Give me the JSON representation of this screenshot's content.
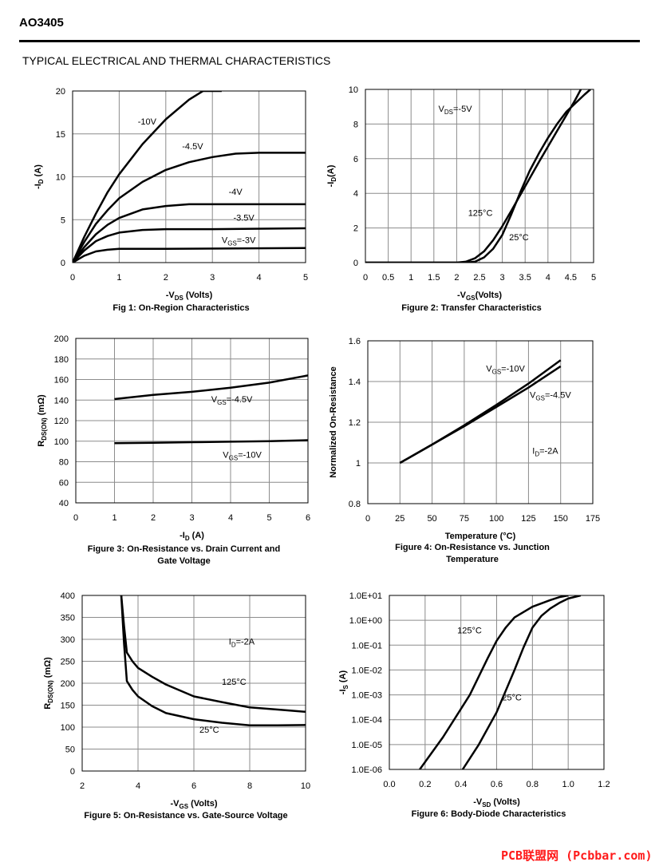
{
  "header": {
    "part_number": "AO3405",
    "section_title": "TYPICAL ELECTRICAL AND THERMAL CHARACTERISTICS"
  },
  "footer": {
    "watermark": "PCB联盟网 (Pcbbar.com)"
  },
  "chart_data": [
    {
      "type": "line",
      "title": "Fig 1: On-Region Characteristics",
      "title_lines": [
        "Fig 1: On-Region Characteristics"
      ],
      "xlabel": {
        "main": "-V",
        "sub": "DS",
        "rest": " (Volts)"
      },
      "ylabel": {
        "main": "-I",
        "sub": "D",
        "rest": " (A)"
      },
      "xlim": [
        0,
        5
      ],
      "ylim": [
        0,
        20
      ],
      "grid": true,
      "log_y": false,
      "xticks": [
        "0",
        "1",
        "2",
        "3",
        "4",
        "5"
      ],
      "yticks": [
        "0",
        "5",
        "10",
        "15",
        "20"
      ],
      "series": [
        {
          "name": "-10V",
          "x": [
            0,
            0.25,
            0.5,
            0.75,
            1,
            1.5,
            2,
            2.5,
            2.8,
            3.2
          ],
          "y": [
            0,
            3.0,
            5.7,
            8.2,
            10.3,
            13.8,
            16.7,
            19.0,
            20,
            20
          ]
        },
        {
          "name": "-4.5V",
          "x": [
            0,
            0.25,
            0.5,
            0.75,
            1,
            1.5,
            2,
            2.5,
            3,
            3.5,
            4,
            5
          ],
          "y": [
            0,
            2.4,
            4.5,
            6.1,
            7.5,
            9.4,
            10.8,
            11.7,
            12.3,
            12.7,
            12.8,
            12.8
          ]
        },
        {
          "name": "-4V",
          "x": [
            0,
            0.25,
            0.5,
            0.75,
            1,
            1.5,
            2,
            2.5,
            3,
            5
          ],
          "y": [
            0,
            1.8,
            3.3,
            4.4,
            5.2,
            6.2,
            6.6,
            6.8,
            6.8,
            6.8
          ]
        },
        {
          "name": "-3.5V",
          "x": [
            0,
            0.25,
            0.5,
            0.75,
            1,
            1.5,
            2,
            3,
            5
          ],
          "y": [
            0,
            1.4,
            2.5,
            3.1,
            3.5,
            3.8,
            3.9,
            3.9,
            4.0
          ]
        },
        {
          "name": "V_GS=-3V",
          "x": [
            0,
            0.25,
            0.5,
            0.75,
            1,
            1.5,
            2,
            5
          ],
          "y": [
            0,
            0.8,
            1.3,
            1.5,
            1.6,
            1.6,
            1.6,
            1.7
          ]
        }
      ],
      "annotations": [
        {
          "main": "-10V",
          "x": 1.4,
          "y": 16.1
        },
        {
          "main": "-4.5V",
          "x": 2.35,
          "y": 13.2
        },
        {
          "main": "-4V",
          "x": 3.35,
          "y": 7.9
        },
        {
          "main": "-3.5V",
          "x": 3.45,
          "y": 4.9
        },
        {
          "main": "V",
          "sub": "GS",
          "rest": "=-3V",
          "x": 3.2,
          "y": 2.3
        }
      ]
    },
    {
      "type": "line",
      "title": "Figure 2: Transfer Characteristics",
      "title_lines": [
        "Figure 2: Transfer Characteristics"
      ],
      "xlabel": {
        "main": "-V",
        "sub": "GS",
        "rest": "(Volts)"
      },
      "ylabel": {
        "main": "-I",
        "sub": "D",
        "rest": "(A)"
      },
      "xlim": [
        0,
        5
      ],
      "ylim": [
        0,
        10
      ],
      "grid": true,
      "log_y": false,
      "xticks": [
        "0",
        "0.5",
        "1",
        "1.5",
        "2",
        "2.5",
        "3",
        "3.5",
        "4",
        "4.5",
        "5"
      ],
      "yticks": [
        "0",
        "2",
        "4",
        "6",
        "8",
        "10"
      ],
      "series": [
        {
          "name": "125°C",
          "x": [
            0,
            2.0,
            2.2,
            2.4,
            2.6,
            2.8,
            3.0,
            3.2,
            3.5,
            3.8,
            4.0,
            4.2,
            4.4,
            4.6,
            4.72
          ],
          "y": [
            0,
            0,
            0.05,
            0.25,
            0.65,
            1.3,
            2.1,
            3.0,
            4.4,
            5.8,
            6.7,
            7.6,
            8.5,
            9.4,
            10
          ]
        },
        {
          "name": "25°C",
          "x": [
            0,
            2.2,
            2.4,
            2.6,
            2.8,
            3.0,
            3.2,
            3.4,
            3.6,
            3.8,
            4.0,
            4.2,
            4.4,
            4.6,
            4.8,
            4.93
          ],
          "y": [
            0,
            0,
            0.05,
            0.3,
            0.8,
            1.6,
            2.8,
            4.1,
            5.3,
            6.3,
            7.2,
            8.0,
            8.7,
            9.2,
            9.7,
            10
          ]
        }
      ],
      "annotations": [
        {
          "main": "V",
          "sub": "DS",
          "rest": "=-5V",
          "x": 1.6,
          "y": 8.7
        },
        {
          "main": "125°C",
          "x": 2.25,
          "y": 2.7
        },
        {
          "main": "25°C",
          "x": 3.15,
          "y": 1.3
        }
      ]
    },
    {
      "type": "line",
      "title": "Figure 3: On-Resistance vs. Drain Current and Gate Voltage",
      "title_lines": [
        "Figure 3: On-Resistance vs. Drain Current and",
        "Gate Voltage"
      ],
      "xlabel": {
        "main": "-I",
        "sub": "D",
        "rest": " (A)"
      },
      "ylabel": {
        "main": "R",
        "sub": "DS(ON)",
        "rest": " (mΩ)"
      },
      "xlim": [
        0,
        6
      ],
      "ylim": [
        40,
        200
      ],
      "grid": true,
      "log_y": false,
      "xticks": [
        "0",
        "1",
        "2",
        "3",
        "4",
        "5",
        "6"
      ],
      "yticks": [
        "40",
        "60",
        "80",
        "100",
        "120",
        "140",
        "160",
        "180",
        "200"
      ],
      "series": [
        {
          "name": "V_GS=-4.5V",
          "x": [
            1,
            2,
            3,
            4,
            5,
            6
          ],
          "y": [
            141,
            145,
            148,
            152,
            157,
            164
          ]
        },
        {
          "name": "V_GS=-10V",
          "x": [
            1,
            2,
            3,
            4,
            5,
            6
          ],
          "y": [
            98,
            98.5,
            99,
            99.5,
            100,
            101
          ]
        }
      ],
      "annotations": [
        {
          "main": "V",
          "sub": "GS",
          "rest": "=-4.5V",
          "x": 3.5,
          "y": 138
        },
        {
          "main": "V",
          "sub": "GS",
          "rest": "=-10V",
          "x": 3.8,
          "y": 84
        }
      ]
    },
    {
      "type": "line",
      "title": "Figure 4: On-Resistance vs. Junction Temperature",
      "title_lines": [
        "Figure 4: On-Resistance vs. Junction",
        "Temperature"
      ],
      "xlabel": {
        "main": "Temperature (°C)"
      },
      "ylabel": {
        "main": "Normalized On-Resistance"
      },
      "xlim": [
        0,
        175
      ],
      "ylim": [
        0.8,
        1.6
      ],
      "grid": true,
      "log_y": false,
      "xticks": [
        "0",
        "25",
        "50",
        "75",
        "100",
        "125",
        "150",
        "175"
      ],
      "yticks": [
        "0.8",
        "1",
        "1.2",
        "1.4",
        "1.6"
      ],
      "series": [
        {
          "name": "V_GS=-10V",
          "x": [
            25,
            50,
            75,
            100,
            125,
            150
          ],
          "y": [
            1.0,
            1.09,
            1.185,
            1.285,
            1.39,
            1.505
          ]
        },
        {
          "name": "V_GS=-4.5V",
          "x": [
            25,
            50,
            75,
            100,
            125,
            150
          ],
          "y": [
            1.0,
            1.09,
            1.18,
            1.275,
            1.37,
            1.475
          ]
        }
      ],
      "annotations": [
        {
          "main": "V",
          "sub": "GS",
          "rest": "=-10V",
          "x": 92,
          "y": 1.45
        },
        {
          "main": "V",
          "sub": "GS",
          "rest": "=-4.5V",
          "x": 126,
          "y": 1.32
        },
        {
          "main": "I",
          "sub": "D",
          "rest": "=-2A",
          "x": 128,
          "y": 1.045
        }
      ]
    },
    {
      "type": "line",
      "title": "Figure 5: On-Resistance vs. Gate-Source Voltage",
      "title_lines": [
        "Figure 5: On-Resistance vs. Gate-Source Voltage"
      ],
      "xlabel": {
        "main": "-V",
        "sub": "GS",
        "rest": " (Volts)"
      },
      "ylabel": {
        "main": "R",
        "sub": "DS(ON)",
        "rest": " (mΩ)"
      },
      "xlim": [
        2,
        10
      ],
      "ylim": [
        0,
        400
      ],
      "grid": true,
      "log_y": false,
      "xticks": [
        "2",
        "4",
        "6",
        "8",
        "10"
      ],
      "yticks": [
        "0",
        "50",
        "100",
        "150",
        "200",
        "250",
        "300",
        "350",
        "400"
      ],
      "series": [
        {
          "name": "125°C",
          "x": [
            3.4,
            3.5,
            3.6,
            3.8,
            4,
            4.5,
            5,
            6,
            7,
            8,
            9,
            10
          ],
          "y": [
            400,
            330,
            270,
            250,
            235,
            215,
            197,
            170,
            157,
            145,
            140,
            135
          ]
        },
        {
          "name": "25°C",
          "x": [
            3.4,
            3.5,
            3.6,
            3.8,
            4,
            4.5,
            5,
            6,
            7,
            8,
            9,
            10
          ],
          "y": [
            400,
            290,
            205,
            185,
            170,
            148,
            132,
            118,
            110,
            104,
            104,
            105
          ]
        }
      ],
      "annotations": [
        {
          "main": "I",
          "sub": "D",
          "rest": "=-2A",
          "x": 7.25,
          "y": 288
        },
        {
          "main": "125°C",
          "x": 7.0,
          "y": 196
        },
        {
          "main": "25°C",
          "x": 6.2,
          "y": 87
        }
      ]
    },
    {
      "type": "line",
      "title": "Figure 6: Body-Diode Characteristics",
      "title_lines": [
        "Figure 6: Body-Diode Characteristics"
      ],
      "xlabel": {
        "main": "-V",
        "sub": "SD",
        "rest": " (Volts)"
      },
      "ylabel": {
        "main": "-I",
        "sub": "S",
        "rest": " (A)"
      },
      "xlim": [
        0,
        1.2
      ],
      "ylim": [
        -6,
        1
      ],
      "grid": true,
      "log_y": true,
      "xticks": [
        "0.0",
        "0.2",
        "0.4",
        "0.6",
        "0.8",
        "1.0",
        "1.2"
      ],
      "yticks": [
        "1.0E-06",
        "1.0E-05",
        "1.0E-04",
        "1.0E-03",
        "1.0E-02",
        "1.0E-01",
        "1.0E+00",
        "1.0E+01"
      ],
      "series": [
        {
          "name": "125°C",
          "x": [
            0.17,
            0.3,
            0.45,
            0.55,
            0.6,
            0.65,
            0.7,
            0.8,
            0.9,
            0.95,
            1.0
          ],
          "y": [
            1e-06,
            2e-05,
            0.001,
            0.03,
            0.15,
            0.5,
            1.3,
            3.5,
            6.5,
            8.5,
            10
          ]
        },
        {
          "name": "25°C",
          "x": [
            0.41,
            0.5,
            0.6,
            0.7,
            0.75,
            0.8,
            0.85,
            0.9,
            0.95,
            1.0,
            1.07
          ],
          "y": [
            1e-06,
            1e-05,
            0.0002,
            0.01,
            0.08,
            0.5,
            1.5,
            3.0,
            5.0,
            7.5,
            10
          ]
        }
      ],
      "annotations": [
        {
          "main": "125°C",
          "x": 0.38,
          "y": 0.3
        },
        {
          "main": "25°C",
          "x": 0.63,
          "y": 0.0006
        }
      ]
    }
  ]
}
